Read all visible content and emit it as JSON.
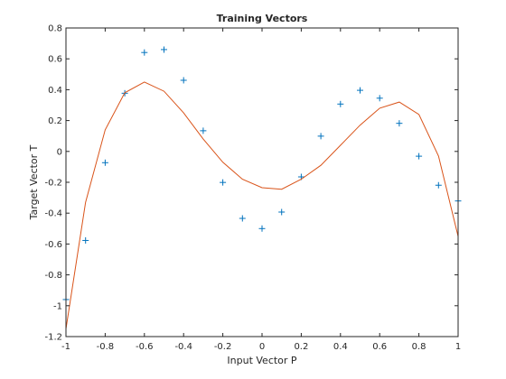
{
  "chart_data": {
    "type": "scatter",
    "title": "Training Vectors",
    "xlabel": "Input Vector P",
    "ylabel": "Target Vector T",
    "xlim": [
      -1,
      1
    ],
    "ylim": [
      -1.2,
      0.8
    ],
    "xticks": [
      -1,
      -0.8,
      -0.6,
      -0.4,
      -0.2,
      0,
      0.2,
      0.4,
      0.6,
      0.8,
      1
    ],
    "xtick_labels": [
      "-1",
      "-0.8",
      "-0.6",
      "-0.4",
      "-0.2",
      "0",
      "0.2",
      "0.4",
      "0.6",
      "0.8",
      "1"
    ],
    "yticks": [
      -1.2,
      -1,
      -0.8,
      -0.6,
      -0.4,
      -0.2,
      0,
      0.2,
      0.4,
      0.6,
      0.8
    ],
    "ytick_labels": [
      "-1.2",
      "-1",
      "-0.8",
      "-0.6",
      "-0.4",
      "-0.2",
      "0",
      "0.2",
      "0.4",
      "0.6",
      "0.8"
    ],
    "grid": false,
    "box": true,
    "series": [
      {
        "type": "scatter",
        "marker": "+",
        "color": "#0072bd",
        "x": [
          -1,
          -0.9,
          -0.8,
          -0.7,
          -0.6,
          -0.5,
          -0.4,
          -0.3,
          -0.2,
          -0.1,
          0,
          0.1,
          0.2,
          0.3,
          0.4,
          0.5,
          0.6,
          0.7,
          0.8,
          0.9,
          1
        ],
        "y": [
          -0.96,
          -0.577,
          -0.073,
          0.377,
          0.641,
          0.66,
          0.461,
          0.134,
          -0.201,
          -0.434,
          -0.5,
          -0.393,
          -0.165,
          0.099,
          0.307,
          0.396,
          0.345,
          0.182,
          -0.031,
          -0.219,
          -0.321
        ]
      },
      {
        "type": "line",
        "color": "#d95319",
        "x": [
          -1,
          -0.9,
          -0.8,
          -0.7,
          -0.6,
          -0.5,
          -0.4,
          -0.3,
          -0.2,
          -0.1,
          0,
          0.1,
          0.2,
          0.3,
          0.4,
          0.5,
          0.6,
          0.7,
          0.8,
          0.9,
          1
        ],
        "y": [
          -1.15,
          -0.33,
          0.14,
          0.38,
          0.45,
          0.39,
          0.25,
          0.08,
          -0.07,
          -0.18,
          -0.235,
          -0.245,
          -0.18,
          -0.09,
          0.04,
          0.17,
          0.28,
          0.32,
          0.24,
          -0.03,
          -0.55
        ]
      }
    ]
  }
}
